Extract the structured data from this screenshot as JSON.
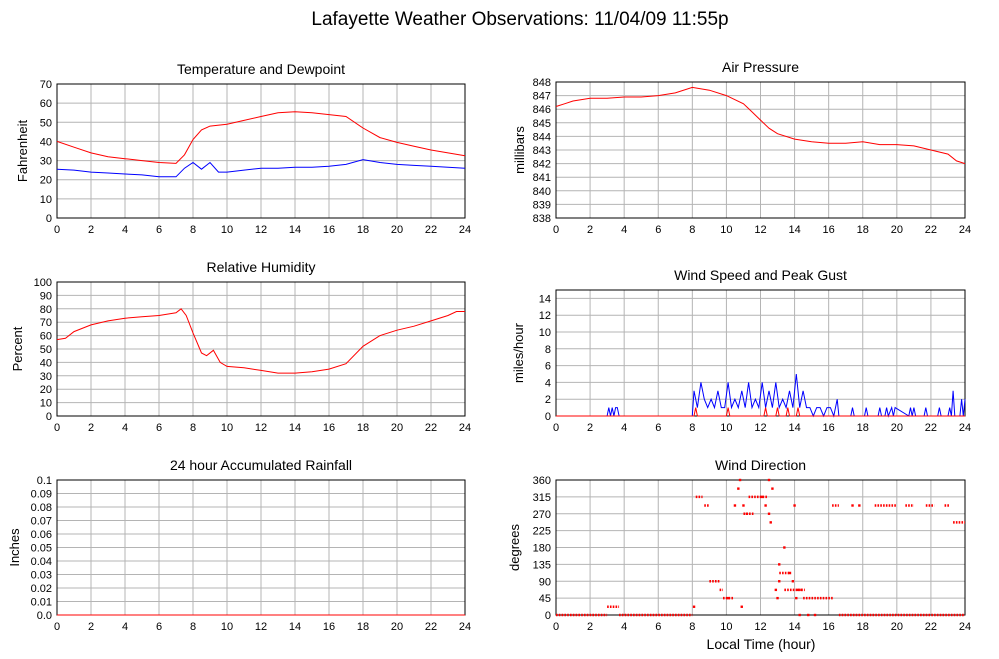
{
  "title": "Lafayette Weather Observations: 11/04/09 11:55p",
  "xlabel": "Local Time (hour)",
  "chart_data": [
    {
      "id": "temp",
      "type": "line",
      "title": "Temperature and Dewpoint",
      "ylabel": "Fahrenheit",
      "xlim": [
        0,
        24
      ],
      "ylim": [
        0,
        70
      ],
      "xticks": [
        0,
        2,
        4,
        6,
        8,
        10,
        12,
        14,
        16,
        18,
        20,
        22,
        24
      ],
      "yticks": [
        0,
        10,
        20,
        30,
        40,
        50,
        60,
        70
      ],
      "grid": true,
      "series": [
        {
          "color": "#ff0000",
          "x": [
            0,
            1,
            2,
            3,
            4,
            5,
            6,
            7,
            7.5,
            8,
            8.5,
            9,
            10,
            11,
            12,
            13,
            14,
            15,
            16,
            17,
            18,
            19,
            20,
            21,
            22,
            23,
            24
          ],
          "y": [
            40,
            37,
            34,
            32,
            31,
            30,
            29,
            28.5,
            33,
            41,
            46,
            48,
            49,
            51,
            53,
            55,
            55.5,
            55,
            54,
            53,
            47,
            42,
            39.5,
            37.5,
            35.5,
            34,
            32.5
          ]
        },
        {
          "color": "#0000ff",
          "x": [
            0,
            1,
            2,
            3,
            4,
            5,
            6,
            7,
            7.5,
            8,
            8.5,
            9,
            9.5,
            10,
            11,
            12,
            13,
            14,
            15,
            16,
            17,
            18,
            19,
            20,
            21,
            22,
            23,
            24
          ],
          "y": [
            25.5,
            25,
            24,
            23.5,
            23,
            22.5,
            21.5,
            21.5,
            26,
            29,
            25.5,
            29,
            24,
            24,
            25,
            26,
            26,
            26.5,
            26.5,
            27,
            28,
            30.5,
            29,
            28,
            27.5,
            27,
            26.5,
            26
          ]
        }
      ]
    },
    {
      "id": "press",
      "type": "line",
      "title": "Air Pressure",
      "ylabel": "millibars",
      "xlim": [
        0,
        24
      ],
      "ylim": [
        838,
        848
      ],
      "xticks": [
        0,
        2,
        4,
        6,
        8,
        10,
        12,
        14,
        16,
        18,
        20,
        22,
        24
      ],
      "yticks": [
        838,
        839,
        840,
        841,
        842,
        843,
        844,
        845,
        846,
        847,
        848
      ],
      "grid": true,
      "series": [
        {
          "color": "#ff0000",
          "x": [
            0,
            0.5,
            1,
            2,
            3,
            4,
            5,
            6,
            7,
            8,
            9,
            10,
            11,
            11.5,
            12,
            12.5,
            13,
            14,
            15,
            16,
            17,
            18,
            19,
            20,
            21,
            22,
            23,
            23.5,
            24
          ],
          "y": [
            846.2,
            846.4,
            846.6,
            846.8,
            846.8,
            846.9,
            846.9,
            847.0,
            847.2,
            847.6,
            847.4,
            847.0,
            846.4,
            845.8,
            845.2,
            844.6,
            844.2,
            843.8,
            843.6,
            843.5,
            843.5,
            843.6,
            843.4,
            843.4,
            843.3,
            843.0,
            842.7,
            842.2,
            842.0
          ]
        }
      ]
    },
    {
      "id": "rh",
      "type": "line",
      "title": "Relative Humidity",
      "ylabel": "Percent",
      "xlim": [
        0,
        24
      ],
      "ylim": [
        0,
        100
      ],
      "xticks": [
        0,
        2,
        4,
        6,
        8,
        10,
        12,
        14,
        16,
        18,
        20,
        22,
        24
      ],
      "yticks": [
        0,
        10,
        20,
        30,
        40,
        50,
        60,
        70,
        80,
        90,
        100
      ],
      "grid": true,
      "series": [
        {
          "color": "#ff0000",
          "x": [
            0,
            0.5,
            1,
            2,
            3,
            4,
            5,
            6,
            7,
            7.3,
            7.6,
            8,
            8.5,
            8.8,
            9.2,
            9.6,
            10,
            11,
            12,
            13,
            14,
            15,
            16,
            17,
            18,
            19,
            20,
            21,
            22,
            23,
            23.5,
            24
          ],
          "y": [
            57,
            58,
            63,
            68,
            71,
            73,
            74,
            75,
            77,
            80,
            75,
            62,
            47,
            45,
            49,
            40,
            37,
            36,
            34,
            32,
            32,
            33,
            35,
            39,
            52,
            60,
            64,
            67,
            71,
            75,
            78,
            78
          ]
        }
      ]
    },
    {
      "id": "wind",
      "type": "line",
      "title": "Wind Speed and Peak Gust",
      "ylabel": "miles/hour",
      "xlim": [
        0,
        24
      ],
      "ylim": [
        0,
        15
      ],
      "xticks": [
        0,
        2,
        4,
        6,
        8,
        10,
        12,
        14,
        16,
        18,
        20,
        22,
        24
      ],
      "yticks": [
        0,
        2,
        4,
        6,
        8,
        10,
        12,
        14
      ],
      "grid": true,
      "series": [
        {
          "color": "#0000ff",
          "x": [
            0,
            3.0,
            3.1,
            3.2,
            3.3,
            3.4,
            3.5,
            3.6,
            3.7,
            8.0,
            8.1,
            8.3,
            8.5,
            8.7,
            8.9,
            9.1,
            9.3,
            9.5,
            9.7,
            9.9,
            10.1,
            10.3,
            10.5,
            10.7,
            10.9,
            11.1,
            11.3,
            11.5,
            11.7,
            11.9,
            12.1,
            12.3,
            12.5,
            12.7,
            12.9,
            13.1,
            13.3,
            13.5,
            13.7,
            13.9,
            14.1,
            14.3,
            14.5,
            14.7,
            14.9,
            15.1,
            15.3,
            15.5,
            15.7,
            15.9,
            16.1,
            16.3,
            16.5,
            16.6,
            17.3,
            17.4,
            17.5,
            18.1,
            18.2,
            18.3,
            18.9,
            19.0,
            19.1,
            19.3,
            19.4,
            19.5,
            19.7,
            19.8,
            19.9,
            20.7,
            20.8,
            20.9,
            21.0,
            21.1,
            21.6,
            21.7,
            21.8,
            22.4,
            22.5,
            22.6,
            23.0,
            23.1,
            23.2,
            23.3,
            23.4,
            23.7,
            23.8,
            23.9,
            24
          ],
          "y": [
            0,
            0,
            1,
            0,
            1,
            0,
            1,
            1,
            0,
            0,
            3,
            1,
            4,
            2,
            1,
            2,
            1,
            3,
            1,
            1,
            4,
            1,
            2,
            1,
            3,
            1,
            4,
            1,
            2,
            1,
            4,
            1,
            3,
            1,
            4,
            1,
            2,
            1,
            3,
            1,
            5,
            1,
            3,
            1,
            1,
            0,
            1,
            1,
            0,
            1,
            1,
            0,
            2,
            0,
            0,
            1,
            0,
            0,
            1,
            0,
            0,
            1,
            0,
            0,
            1,
            0,
            1,
            0,
            1,
            0,
            1,
            0,
            1,
            0,
            0,
            1,
            0,
            0,
            1,
            0,
            0,
            1,
            0,
            3,
            0,
            0,
            2,
            0,
            2
          ]
        },
        {
          "color": "#ff0000",
          "x": [
            0,
            8.1,
            8.2,
            8.3,
            10.0,
            10.1,
            10.2,
            12.2,
            12.3,
            12.4,
            12.9,
            13.0,
            13.1,
            13.5,
            13.6,
            13.7,
            14.1,
            14.2,
            14.3,
            24
          ],
          "y": [
            0,
            0,
            1,
            0,
            0,
            1,
            0,
            0,
            1,
            0,
            0,
            1,
            0,
            0,
            1,
            0,
            0,
            1,
            0,
            0
          ]
        }
      ]
    },
    {
      "id": "rain",
      "type": "line",
      "title": "24 hour Accumulated Rainfall",
      "ylabel": "Inches",
      "xlim": [
        0,
        24
      ],
      "ylim": [
        0,
        0.1
      ],
      "xticks": [
        0,
        2,
        4,
        6,
        8,
        10,
        12,
        14,
        16,
        18,
        20,
        22,
        24
      ],
      "yticks": [
        0,
        0.01,
        0.02,
        0.03,
        0.04,
        0.05,
        0.06,
        0.07,
        0.08,
        0.09,
        0.1
      ],
      "ytick_labels": [
        "0.0",
        "0.01",
        "0.02",
        "0.03",
        "0.04",
        "0.05",
        "0.06",
        "0.07",
        "0.08",
        "0.09",
        "0.1"
      ],
      "grid": true,
      "series": [
        {
          "color": "#ff0000",
          "x": [
            0,
            24
          ],
          "y": [
            0,
            0
          ]
        }
      ]
    },
    {
      "id": "dir",
      "type": "scatter",
      "title": "Wind Direction",
      "ylabel": "degrees",
      "xlim": [
        0,
        24
      ],
      "ylim": [
        0,
        360
      ],
      "xticks": [
        0,
        2,
        4,
        6,
        8,
        10,
        12,
        14,
        16,
        18,
        20,
        22,
        24
      ],
      "yticks": [
        0,
        45,
        90,
        135,
        180,
        225,
        270,
        315,
        360
      ],
      "grid": true,
      "series": [
        {
          "color": "#ff0000",
          "segments": [
            {
              "y": 0,
              "x0": 0,
              "x1": 3.0
            },
            {
              "y": 22,
              "x0": 3.0,
              "x1": 3.7
            },
            {
              "y": 0,
              "x0": 3.7,
              "x1": 8.0
            },
            {
              "y": 315,
              "x0": 8.2,
              "x1": 8.6
            },
            {
              "y": 292,
              "x0": 8.7,
              "x1": 9.0
            },
            {
              "y": 90,
              "x0": 9.0,
              "x1": 9.6
            },
            {
              "y": 67,
              "x0": 9.6,
              "x1": 9.8
            },
            {
              "y": 45,
              "x0": 9.8,
              "x1": 10.4
            },
            {
              "y": 270,
              "x0": 11.0,
              "x1": 11.6
            },
            {
              "y": 315,
              "x0": 11.3,
              "x1": 12.4
            },
            {
              "y": 112,
              "x0": 13.1,
              "x1": 13.8
            },
            {
              "y": 67,
              "x0": 13.4,
              "x1": 14.6
            },
            {
              "y": 45,
              "x0": 14.5,
              "x1": 16.3
            },
            {
              "y": 292,
              "x0": 16.2,
              "x1": 16.6
            },
            {
              "y": 0,
              "x0": 16.6,
              "x1": 24
            },
            {
              "y": 292,
              "x0": 18.7,
              "x1": 20.0
            },
            {
              "y": 292,
              "x0": 20.5,
              "x1": 21.0
            },
            {
              "y": 292,
              "x0": 21.7,
              "x1": 22.2
            },
            {
              "y": 292,
              "x0": 22.8,
              "x1": 23.1
            },
            {
              "y": 247,
              "x0": 23.3,
              "x1": 24
            }
          ],
          "points": [
            [
              8.1,
              22
            ],
            [
              10.1,
              45
            ],
            [
              10.5,
              292
            ],
            [
              10.8,
              360
            ],
            [
              10.9,
              22
            ],
            [
              10.7,
              337
            ],
            [
              11.0,
              292
            ],
            [
              11.2,
              270
            ],
            [
              12.1,
              315
            ],
            [
              12.3,
              292
            ],
            [
              12.5,
              270
            ],
            [
              12.6,
              247
            ],
            [
              12.5,
              360
            ],
            [
              12.7,
              337
            ],
            [
              13.0,
              45
            ],
            [
              12.9,
              67
            ],
            [
              13.1,
              90
            ],
            [
              13.1,
              135
            ],
            [
              13.4,
              180
            ],
            [
              13.7,
              112
            ],
            [
              13.9,
              90
            ],
            [
              14.0,
              292
            ],
            [
              14.2,
              67
            ],
            [
              14.4,
              67
            ],
            [
              14.1,
              45
            ],
            [
              14.3,
              0
            ],
            [
              14.8,
              0
            ],
            [
              15.2,
              0
            ],
            [
              17.4,
              292
            ],
            [
              17.8,
              292
            ]
          ]
        }
      ]
    }
  ]
}
